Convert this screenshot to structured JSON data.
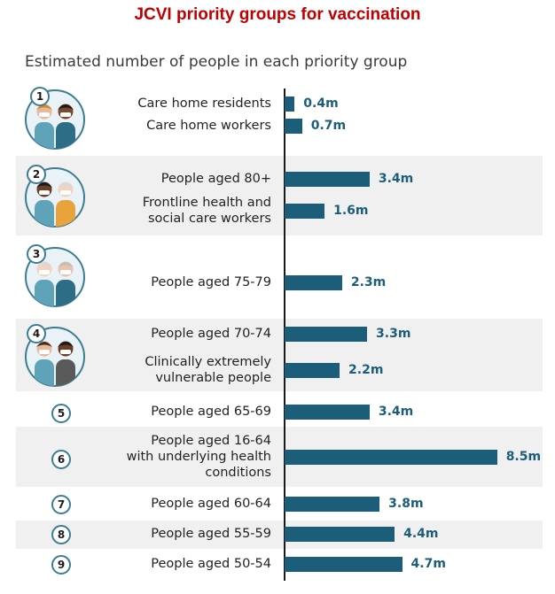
{
  "title": "JCVI priority groups for vaccination",
  "chart_data": {
    "type": "bar",
    "orientation": "horizontal",
    "title": "JCVI priority groups for vaccination",
    "subtitle": "Estimated number of people in each priority group",
    "unit": "m",
    "xlim": [
      0,
      8.5
    ],
    "groups": [
      {
        "number": "1",
        "has_illustration": true,
        "icon": "care-home-people-icon",
        "items": [
          {
            "label": "Care home residents",
            "value": 0.4,
            "value_label": "0.4m"
          },
          {
            "label": "Care home workers",
            "value": 0.7,
            "value_label": "0.7m"
          }
        ]
      },
      {
        "number": "2",
        "has_illustration": true,
        "icon": "elderly-and-health-worker-icon",
        "items": [
          {
            "label": "People aged 80+",
            "value": 3.4,
            "value_label": "3.4m"
          },
          {
            "label": "Frontline health and social care workers",
            "label_lines": [
              "Frontline health and",
              "social care workers"
            ],
            "value": 1.6,
            "value_label": "1.6m"
          }
        ]
      },
      {
        "number": "3",
        "has_illustration": true,
        "icon": "elderly-couple-icon",
        "items": [
          {
            "label": "People aged 75-79",
            "value": 2.3,
            "value_label": "2.3m"
          }
        ]
      },
      {
        "number": "4",
        "has_illustration": true,
        "icon": "couple-with-masks-icon",
        "items": [
          {
            "label": "People aged 70-74",
            "value": 3.3,
            "value_label": "3.3m"
          },
          {
            "label": "Clinically extremely vulnerable people",
            "label_lines": [
              "Clinically extremely",
              "vulnerable people"
            ],
            "value": 2.2,
            "value_label": "2.2m"
          }
        ]
      },
      {
        "number": "5",
        "has_illustration": false,
        "items": [
          {
            "label": "People aged 65-69",
            "value": 3.4,
            "value_label": "3.4m"
          }
        ]
      },
      {
        "number": "6",
        "has_illustration": false,
        "items": [
          {
            "label": "People aged 16-64 with underlying health conditions",
            "label_lines": [
              "People aged 16-64",
              "with underlying health",
              "conditions"
            ],
            "value": 8.5,
            "value_label": "8.5m"
          }
        ]
      },
      {
        "number": "7",
        "has_illustration": false,
        "items": [
          {
            "label": "People aged 60-64",
            "value": 3.8,
            "value_label": "3.8m"
          }
        ]
      },
      {
        "number": "8",
        "has_illustration": false,
        "items": [
          {
            "label": "People aged 55-59",
            "value": 4.4,
            "value_label": "4.4m"
          }
        ]
      },
      {
        "number": "9",
        "has_illustration": false,
        "items": [
          {
            "label": "People aged 50-54",
            "value": 4.7,
            "value_label": "4.7m"
          }
        ]
      }
    ]
  },
  "colors": {
    "bar": "#1c5d79",
    "title": "#c00000",
    "band": "#f0f0f0",
    "badge_ring": "#3d7d92"
  }
}
